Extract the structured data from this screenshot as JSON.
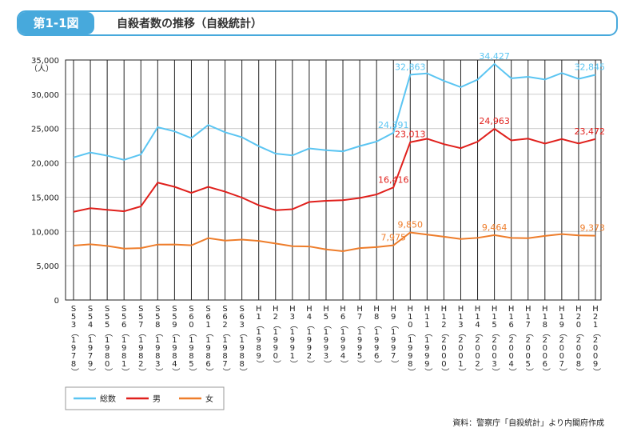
{
  "chart_data": {
    "type": "line",
    "figure_label": "第1-1図",
    "title": "自殺者数の推移（自殺統計）",
    "y_unit": "（人）",
    "source": "資料：警察庁「自殺統計」より内閣府作成",
    "categories": [
      "S53（1978）",
      "S54（1979）",
      "S55（1980）",
      "S56（1981）",
      "S57（1982）",
      "S58（1983）",
      "S59（1984）",
      "S60（1985）",
      "S61（1986）",
      "S62（1987）",
      "S63（1988）",
      "H1（1989）",
      "H2（1990）",
      "H3（1991）",
      "H4（1992）",
      "H5（1993）",
      "H6（1994）",
      "H7（1995）",
      "H8（1996）",
      "H9（1997）",
      "H10（1998）",
      "H11（1999）",
      "H12（2000）",
      "H13（2001）",
      "H14（2002）",
      "H15（2003）",
      "H16（2004）",
      "H17（2005）",
      "H18（2006）",
      "H19（2007）",
      "H20（2008）",
      "H21（2009）"
    ],
    "series": [
      {
        "name": "総数",
        "color": "#5bc5f2",
        "values": [
          20788,
          21503,
          21048,
          20434,
          21228,
          25202,
          24596,
          23599,
          25524,
          24460,
          23742,
          22436,
          21346,
          21084,
          22104,
          21851,
          21679,
          22445,
          23104,
          24391,
          32863,
          33048,
          31957,
          31042,
          32143,
          34427,
          32325,
          32552,
          32155,
          33093,
          32249,
          32845
        ],
        "value_labels": [
          null,
          null,
          null,
          null,
          null,
          null,
          null,
          null,
          null,
          null,
          null,
          null,
          null,
          null,
          null,
          null,
          null,
          null,
          null,
          "24,391",
          "32,863",
          null,
          null,
          null,
          null,
          "34,427",
          null,
          null,
          null,
          null,
          null,
          "32,845"
        ]
      },
      {
        "name": "男",
        "color": "#e0201c",
        "values": [
          12859,
          13386,
          13155,
          12942,
          13654,
          17116,
          16508,
          15624,
          16497,
          15802,
          14934,
          13818,
          13102,
          13242,
          14296,
          14468,
          14560,
          14874,
          15393,
          16416,
          23013,
          23512,
          22727,
          22144,
          23080,
          24963,
          23272,
          23540,
          22813,
          23478,
          22831,
          23472
        ],
        "value_labels": [
          null,
          null,
          null,
          null,
          null,
          null,
          null,
          null,
          null,
          null,
          null,
          null,
          null,
          null,
          null,
          null,
          null,
          null,
          null,
          "16,416",
          "23,013",
          null,
          null,
          null,
          null,
          "24,963",
          null,
          null,
          null,
          null,
          null,
          "23,472"
        ]
      },
      {
        "name": "女",
        "color": "#ee7d2b",
        "values": [
          7929,
          8117,
          7893,
          7492,
          7574,
          8086,
          8088,
          7975,
          9027,
          8658,
          8808,
          8618,
          8244,
          7842,
          7808,
          7383,
          7119,
          7571,
          7711,
          7975,
          9850,
          9536,
          9230,
          8898,
          9063,
          9464,
          9053,
          9012,
          9342,
          9615,
          9418,
          9373
        ],
        "value_labels": [
          null,
          null,
          null,
          null,
          null,
          null,
          null,
          null,
          null,
          null,
          null,
          null,
          null,
          null,
          null,
          null,
          null,
          null,
          null,
          "7,975",
          "9,850",
          null,
          null,
          null,
          null,
          "9,464",
          null,
          null,
          null,
          null,
          null,
          "9,373"
        ]
      }
    ],
    "ylim": [
      0,
      35000
    ],
    "yticks": [
      0,
      {
        "value": 5000,
        "label": "5,000"
      },
      {
        "value": 10000,
        "label": "10,000"
      },
      {
        "value": 15000,
        "label": "15,000"
      },
      {
        "value": 20000,
        "label": "20,000"
      },
      {
        "value": 25000,
        "label": "25,000"
      },
      {
        "value": 30000,
        "label": "30,000"
      },
      {
        "value": 35000,
        "label": "35,000"
      }
    ],
    "grid": true
  }
}
